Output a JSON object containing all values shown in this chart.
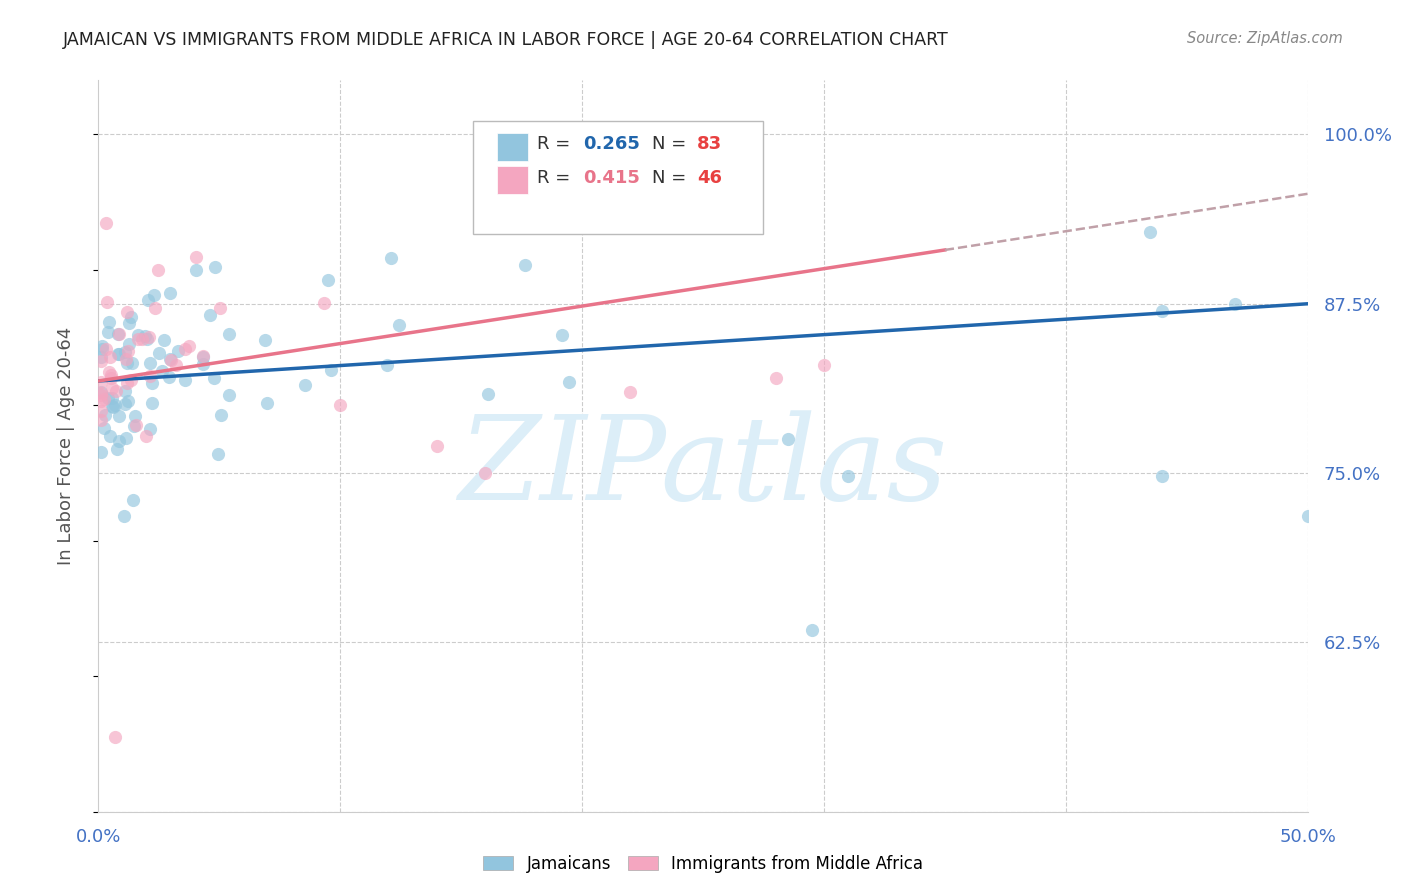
{
  "title": "JAMAICAN VS IMMIGRANTS FROM MIDDLE AFRICA IN LABOR FORCE | AGE 20-64 CORRELATION CHART",
  "source": "Source: ZipAtlas.com",
  "ylabel": "In Labor Force | Age 20-64",
  "xlim": [
    0.0,
    0.5
  ],
  "ylim": [
    0.5,
    1.04
  ],
  "blue_R": 0.265,
  "blue_N": 83,
  "pink_R": 0.415,
  "pink_N": 46,
  "blue_color": "#92c5de",
  "pink_color": "#f4a6c0",
  "blue_line_color": "#2166ac",
  "pink_line_color": "#e8748a",
  "pink_dash_color": "#c0a0a8",
  "axis_label_color": "#4472c4",
  "ylabel_color": "#555555",
  "title_color": "#222222",
  "source_color": "#888888",
  "grid_color": "#cccccc",
  "background_color": "#ffffff",
  "watermark_color": "#dceef8",
  "legend_R_color": "#333333",
  "legend_blue_val_color": "#2166ac",
  "legend_pink_val_color": "#e8748a",
  "legend_N_val_color": "#e84040",
  "yticks": [
    0.5,
    0.625,
    0.75,
    0.875,
    1.0
  ],
  "yticklabels": [
    "",
    "62.5%",
    "75.0%",
    "87.5%",
    "100.0%"
  ],
  "xticks": [
    0.0,
    0.1,
    0.2,
    0.3,
    0.4,
    0.5
  ],
  "xticklabels": [
    "0.0%",
    "",
    "",
    "",
    "",
    "50.0%"
  ]
}
